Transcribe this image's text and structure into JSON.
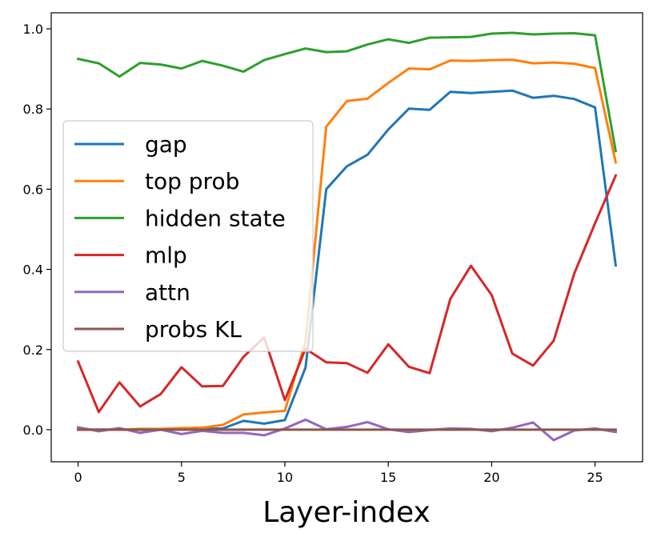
{
  "chart_data": {
    "type": "line",
    "xlabel": "Layer-index",
    "ylabel": "",
    "title": "",
    "xlim": [
      -1.3,
      27.3
    ],
    "ylim": [
      -0.08,
      1.04
    ],
    "xticks": [
      0,
      5,
      10,
      15,
      20,
      25
    ],
    "yticks": [
      0.0,
      0.2,
      0.4,
      0.6,
      0.8,
      1.0
    ],
    "ytick_labels": [
      "0.0",
      "0.2",
      "0.4",
      "0.6",
      "0.8",
      "1.0"
    ],
    "legend_position": "center-left",
    "grid": false,
    "x": [
      0,
      1,
      2,
      3,
      4,
      5,
      6,
      7,
      8,
      9,
      10,
      11,
      12,
      13,
      14,
      15,
      16,
      17,
      18,
      19,
      20,
      21,
      22,
      23,
      24,
      25,
      26
    ],
    "series": [
      {
        "name": "gap",
        "color": "#1f77b4",
        "values": [
          0.0,
          0.0,
          0.0,
          0.0,
          0.0,
          0.002,
          0.002,
          0.003,
          0.022,
          0.015,
          0.024,
          0.155,
          0.6,
          0.657,
          0.686,
          0.749,
          0.801,
          0.798,
          0.843,
          0.84,
          0.843,
          0.846,
          0.828,
          0.833,
          0.825,
          0.804,
          0.41
        ]
      },
      {
        "name": "top prob",
        "color": "#ff7f0e",
        "values": [
          0.0,
          0.0,
          0.0,
          0.002,
          0.002,
          0.004,
          0.005,
          0.012,
          0.038,
          0.043,
          0.047,
          0.22,
          0.756,
          0.82,
          0.826,
          0.865,
          0.901,
          0.899,
          0.921,
          0.92,
          0.922,
          0.923,
          0.914,
          0.916,
          0.913,
          0.902,
          0.667
        ]
      },
      {
        "name": "hidden state",
        "color": "#2ca02c",
        "values": [
          0.925,
          0.914,
          0.881,
          0.915,
          0.911,
          0.901,
          0.92,
          0.908,
          0.893,
          0.922,
          0.937,
          0.951,
          0.942,
          0.944,
          0.961,
          0.974,
          0.965,
          0.978,
          0.979,
          0.98,
          0.988,
          0.99,
          0.986,
          0.988,
          0.989,
          0.984,
          0.695
        ]
      },
      {
        "name": "mlp",
        "color": "#d62728",
        "values": [
          0.17,
          0.044,
          0.118,
          0.058,
          0.089,
          0.156,
          0.108,
          0.109,
          0.182,
          0.23,
          0.074,
          0.202,
          0.168,
          0.166,
          0.142,
          0.213,
          0.157,
          0.141,
          0.326,
          0.409,
          0.336,
          0.19,
          0.16,
          0.222,
          0.39,
          0.515,
          0.634
        ]
      },
      {
        "name": "attn",
        "color": "#9467bd",
        "values": [
          0.006,
          -0.004,
          0.004,
          -0.008,
          0.0,
          -0.011,
          -0.003,
          -0.008,
          -0.008,
          -0.014,
          0.003,
          0.025,
          0.001,
          0.007,
          0.019,
          0.001,
          -0.006,
          -0.001,
          0.003,
          0.002,
          -0.004,
          0.005,
          0.018,
          -0.026,
          -0.002,
          0.003,
          -0.006
        ]
      },
      {
        "name": "probs KL",
        "color": "#8c564b",
        "values": [
          0,
          0,
          0,
          0,
          0,
          0,
          0,
          0,
          0,
          0,
          0,
          0,
          0,
          0,
          0,
          0,
          0,
          0,
          0,
          0,
          0,
          0,
          0,
          0,
          0,
          0,
          0
        ]
      }
    ]
  }
}
